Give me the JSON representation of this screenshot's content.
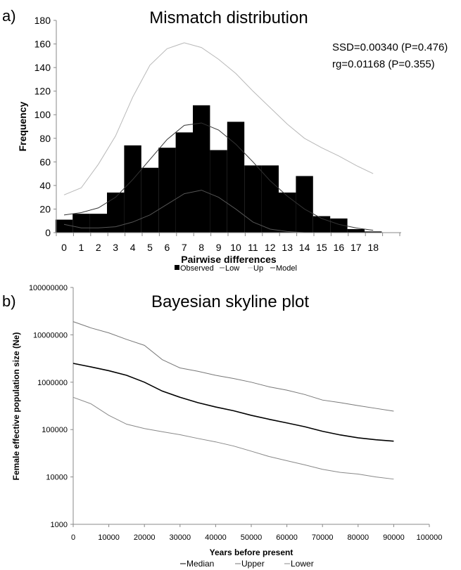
{
  "chart_data": [
    {
      "panel_label": "a)",
      "type": "bar",
      "title": "Mismatch distribution",
      "xlabel": "Pairwise differences",
      "ylabel": "Frequency",
      "ylim": [
        0,
        180
      ],
      "yticks": [
        0,
        20,
        40,
        60,
        80,
        100,
        120,
        140,
        160,
        180
      ],
      "categories": [
        "0",
        "1",
        "2",
        "3",
        "4",
        "5",
        "6",
        "7",
        "8",
        "9",
        "10",
        "11",
        "12",
        "13",
        "14",
        "15",
        "16",
        "17",
        "18"
      ],
      "annotations": [
        "SSD=0.00340 (P=0.476)",
        "rg=0.01168 (P=0.355)"
      ],
      "legend_position": "bottom",
      "series": [
        {
          "name": "Observed",
          "kind": "bar",
          "color": "#000000",
          "values": [
            11,
            16,
            16,
            34,
            74,
            55,
            72,
            85,
            108,
            70,
            94,
            57,
            57,
            34,
            48,
            14,
            12,
            3,
            1
          ]
        },
        {
          "name": "Low",
          "kind": "line",
          "color": "#555555",
          "values": [
            7,
            4,
            4,
            5,
            9,
            15,
            24,
            33,
            36,
            30,
            20,
            9,
            3,
            1,
            0,
            0,
            0,
            0,
            0
          ]
        },
        {
          "name": "Up",
          "kind": "line",
          "color": "#b8b8b8",
          "values": [
            32,
            38,
            58,
            82,
            115,
            142,
            156,
            161,
            157,
            147,
            135,
            120,
            106,
            92,
            80,
            72,
            65,
            57,
            50
          ]
        },
        {
          "name": "Model",
          "kind": "line",
          "color": "#333333",
          "values": [
            15,
            17,
            21,
            30,
            45,
            62,
            79,
            91,
            93,
            87,
            75,
            60,
            44,
            31,
            20,
            12,
            7,
            4,
            2
          ]
        }
      ]
    },
    {
      "panel_label": "b)",
      "type": "line",
      "title": "Bayesian skyline plot",
      "xlabel": "Years before present",
      "ylabel": "Female effective population size (Ne)",
      "xlim": [
        0,
        100000
      ],
      "xticks": [
        0,
        10000,
        20000,
        30000,
        40000,
        50000,
        60000,
        70000,
        80000,
        90000,
        100000
      ],
      "y_scale": "log",
      "ylim": [
        1000,
        100000000
      ],
      "yticks": [
        1000,
        10000,
        100000,
        1000000,
        10000000,
        100000000
      ],
      "legend_position": "bottom",
      "x": [
        0,
        5000,
        10000,
        15000,
        20000,
        25000,
        30000,
        35000,
        40000,
        45000,
        50000,
        55000,
        60000,
        65000,
        70000,
        75000,
        80000,
        85000,
        90000
      ],
      "series": [
        {
          "name": "Median",
          "color": "#000000",
          "values": [
            2500000,
            2100000,
            1750000,
            1400000,
            1000000,
            650000,
            480000,
            370000,
            300000,
            250000,
            200000,
            165000,
            138000,
            115000,
            92000,
            77000,
            67000,
            61000,
            57000
          ]
        },
        {
          "name": "Upper",
          "color": "#777777",
          "values": [
            19000000,
            14000000,
            11000000,
            8000000,
            6000000,
            3000000,
            2000000,
            1700000,
            1400000,
            1200000,
            1000000,
            800000,
            680000,
            550000,
            420000,
            370000,
            320000,
            280000,
            245000
          ]
        },
        {
          "name": "Lower",
          "color": "#888888",
          "values": [
            480000,
            350000,
            200000,
            130000,
            105000,
            90000,
            78000,
            65000,
            55000,
            45000,
            35000,
            27000,
            22000,
            18000,
            14500,
            12500,
            11500,
            10000,
            9000
          ]
        }
      ]
    }
  ]
}
